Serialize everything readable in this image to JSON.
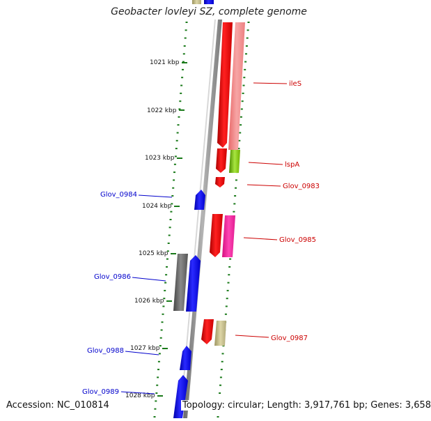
{
  "title": "Geobacter lovleyi SZ, complete genome",
  "footer": {
    "accession": "Accession: NC_010814",
    "topology": "Topology: circular; Length: 3,917,761 bp; Genes: 3,658"
  },
  "kbp_labels": [
    "1021 kbp",
    "1022 kbp",
    "1023 kbp",
    "1024 kbp",
    "1025 kbp",
    "1026 kbp",
    "1027 kbp",
    "1028 kbp"
  ],
  "genes_forward": [
    {
      "name": "ileS",
      "label": "ileS",
      "color": "#cc0000"
    },
    {
      "name": "lspA",
      "label": "lspA",
      "color": "#cc0000"
    },
    {
      "name": "glov-0983",
      "label": "Glov_0983",
      "color": "#cc0000"
    },
    {
      "name": "glov-0985",
      "label": "Glov_0985",
      "color": "#cc0000"
    },
    {
      "name": "glov-0987",
      "label": "Glov_0987",
      "color": "#cc0000"
    }
  ],
  "genes_reverse": [
    {
      "name": "glov-0984",
      "label": "Glov_0984",
      "color": "#0000cc"
    },
    {
      "name": "glov-0986",
      "label": "Glov_0986",
      "color": "#0000cc"
    },
    {
      "name": "glov-0988",
      "label": "Glov_0988",
      "color": "#0000cc"
    },
    {
      "name": "glov-0989",
      "label": "Glov_0989",
      "color": "#0000cc"
    }
  ],
  "colors": {
    "forward_cds": "#ff0000",
    "reverse_cds": "#0000ff",
    "cog_pink": "#f08080",
    "cog_magenta": "#ff2aa0",
    "cog_lime": "#80cc00",
    "cog_khaki": "#b8b078",
    "cog_grey": "#666666",
    "backbone": "#8a8a8a",
    "tick": "#1a7a1a"
  }
}
